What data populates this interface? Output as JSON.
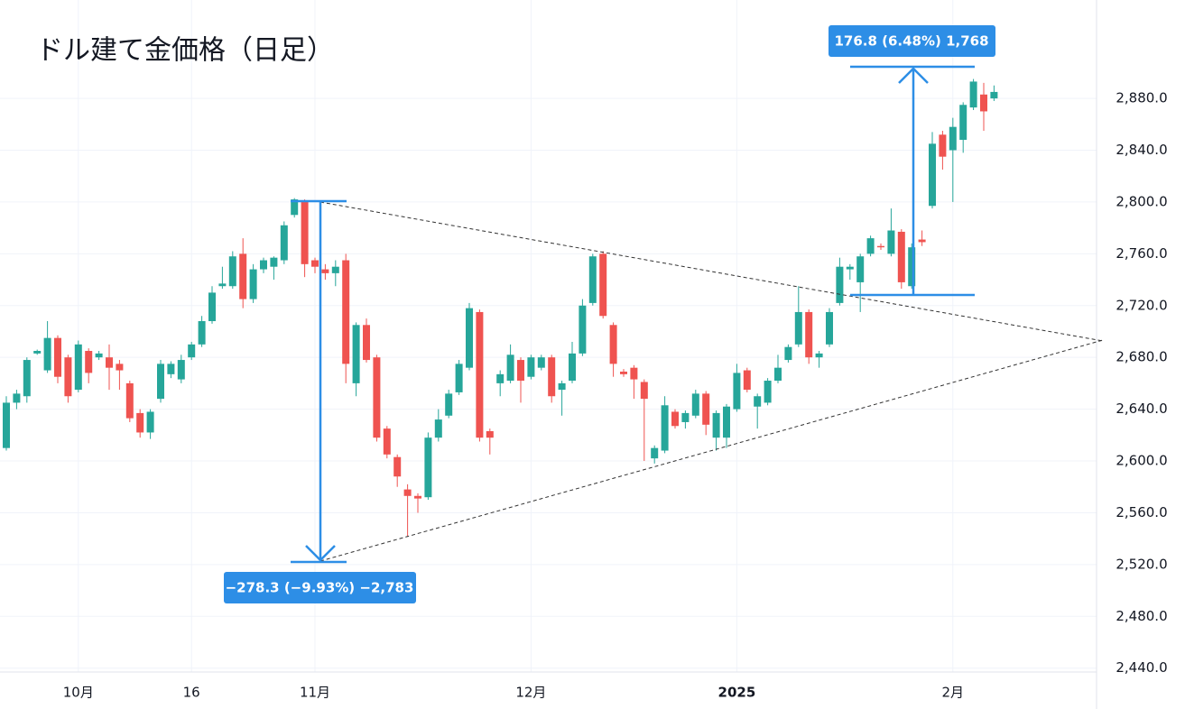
{
  "chart_data": {
    "type": "candlestick",
    "title": "ドル建て金価格（日足）",
    "categories": [
      null,
      null,
      null,
      null,
      null,
      null,
      null,
      "10月",
      null,
      null,
      null,
      null,
      null,
      null,
      null,
      null,
      null,
      null,
      "16",
      null,
      null,
      null,
      null,
      null,
      null,
      null,
      null,
      null,
      null,
      null,
      "11月",
      null,
      null,
      null,
      null,
      null,
      null,
      null,
      null,
      null,
      null,
      null,
      null,
      null,
      null,
      null,
      null,
      null,
      null,
      null,
      null,
      "12月",
      null,
      null,
      null,
      null,
      null,
      null,
      null,
      null,
      null,
      null,
      null,
      null,
      null,
      null,
      null,
      null,
      null,
      null,
      null,
      "2025",
      null,
      null,
      null,
      null,
      null,
      null,
      null,
      null,
      null,
      null,
      null,
      null,
      null,
      null,
      null,
      null,
      null,
      null,
      null,
      null,
      "2月",
      null,
      null,
      null,
      null
    ],
    "open": [
      2610,
      2645,
      2650,
      2683,
      2670,
      2695,
      2680,
      2655,
      2685,
      2680,
      2680,
      2675,
      2660,
      2637,
      2622,
      2648,
      2667,
      2663,
      2680,
      2690,
      2708,
      2735,
      2735,
      2760,
      2725,
      2748,
      2750,
      2755,
      2790,
      2800,
      2755,
      2748,
      2745,
      2755,
      2660,
      2705,
      2680,
      2625,
      2603,
      2578,
      2573,
      2572,
      2618,
      2635,
      2653,
      2672,
      2715,
      2623,
      2660,
      2662,
      2678,
      2665,
      2672,
      2680,
      2655,
      2662,
      2683,
      2722,
      2760,
      2705,
      2669,
      2672,
      2661,
      2602,
      2608,
      2638,
      2630,
      2635,
      2652,
      2618,
      2618,
      2640,
      2670,
      2642,
      2645,
      2662,
      2678,
      2690,
      2715,
      2680,
      2690,
      2722,
      2748,
      2738,
      2760,
      2766,
      2760,
      2777,
      2735,
      2771,
      2797,
      2852,
      2840,
      2848,
      2873,
      2883,
      2880
    ],
    "high": [
      2650,
      2655,
      2680,
      2686,
      2708,
      2697,
      2682,
      2693,
      2687,
      2685,
      2690,
      2678,
      2662,
      2640,
      2640,
      2678,
      2677,
      2682,
      2692,
      2712,
      2735,
      2750,
      2762,
      2772,
      2752,
      2757,
      2758,
      2785,
      2803,
      2802,
      2757,
      2752,
      2755,
      2760,
      2707,
      2710,
      2682,
      2627,
      2605,
      2582,
      2575,
      2622,
      2640,
      2655,
      2678,
      2722,
      2717,
      2625,
      2670,
      2690,
      2680,
      2682,
      2682,
      2682,
      2662,
      2692,
      2725,
      2760,
      2762,
      2707,
      2671,
      2674,
      2663,
      2612,
      2650,
      2640,
      2639,
      2655,
      2654,
      2639,
      2644,
      2675,
      2672,
      2652,
      2664,
      2682,
      2690,
      2735,
      2717,
      2685,
      2718,
      2757,
      2752,
      2760,
      2774,
      2768,
      2795,
      2779,
      2768,
      2778,
      2854,
      2855,
      2865,
      2877,
      2895,
      2892,
      2890
    ],
    "low": [
      2608,
      2640,
      2645,
      2682,
      2668,
      2660,
      2645,
      2653,
      2660,
      2678,
      2655,
      2655,
      2630,
      2618,
      2617,
      2645,
      2664,
      2660,
      2678,
      2688,
      2706,
      2733,
      2733,
      2718,
      2722,
      2745,
      2740,
      2752,
      2788,
      2742,
      2745,
      2740,
      2735,
      2660,
      2650,
      2676,
      2615,
      2602,
      2580,
      2542,
      2560,
      2570,
      2615,
      2633,
      2651,
      2670,
      2615,
      2605,
      2650,
      2660,
      2645,
      2663,
      2670,
      2645,
      2635,
      2660,
      2681,
      2720,
      2710,
      2665,
      2665,
      2648,
      2600,
      2598,
      2606,
      2625,
      2625,
      2633,
      2620,
      2608,
      2610,
      2638,
      2653,
      2625,
      2643,
      2660,
      2676,
      2688,
      2675,
      2672,
      2688,
      2720,
      2740,
      2715,
      2758,
      2763,
      2758,
      2733,
      2733,
      2766,
      2795,
      2825,
      2800,
      2838,
      2871,
      2855,
      2878
    ],
    "close": [
      2645,
      2652,
      2678,
      2685,
      2695,
      2665,
      2650,
      2690,
      2668,
      2683,
      2672,
      2670,
      2633,
      2622,
      2638,
      2675,
      2675,
      2678,
      2690,
      2708,
      2730,
      2737,
      2758,
      2725,
      2748,
      2755,
      2757,
      2782,
      2802,
      2752,
      2750,
      2745,
      2750,
      2675,
      2705,
      2678,
      2618,
      2605,
      2588,
      2573,
      2571,
      2618,
      2632,
      2652,
      2675,
      2718,
      2618,
      2618,
      2667,
      2682,
      2662,
      2680,
      2680,
      2650,
      2660,
      2683,
      2720,
      2758,
      2712,
      2675,
      2667,
      2663,
      2648,
      2610,
      2643,
      2627,
      2637,
      2652,
      2628,
      2637,
      2642,
      2668,
      2655,
      2650,
      2662,
      2672,
      2688,
      2715,
      2680,
      2683,
      2715,
      2750,
      2750,
      2758,
      2772,
      2765,
      2778,
      2738,
      2765,
      2769,
      2845,
      2835,
      2858,
      2875,
      2893,
      2870,
      2885
    ],
    "up_color": "#26a69a",
    "down_color": "#ef5350",
    "ylim": [
      2437,
      2956
    ],
    "yticks": [
      {
        "value": 2440,
        "label": "2,440.0"
      },
      {
        "value": 2480,
        "label": "2,480.0"
      },
      {
        "value": 2520,
        "label": "2,520.0"
      },
      {
        "value": 2560,
        "label": "2,560.0"
      },
      {
        "value": 2600,
        "label": "2,600.0"
      },
      {
        "value": 2640,
        "label": "2,640.0"
      },
      {
        "value": 2680,
        "label": "2,680.0"
      },
      {
        "value": 2720,
        "label": "2,720.0"
      },
      {
        "value": 2760,
        "label": "2,760.0"
      },
      {
        "value": 2800,
        "label": "2,800.0"
      },
      {
        "value": 2840,
        "label": "2,840.0"
      },
      {
        "value": 2880,
        "label": "2,880.0"
      }
    ],
    "grid": true,
    "annotations": [
      {
        "text": "176.8 (6.48%) 1,768"
      },
      {
        "text": "−278.3 (−9.93%) −2,783"
      }
    ]
  }
}
